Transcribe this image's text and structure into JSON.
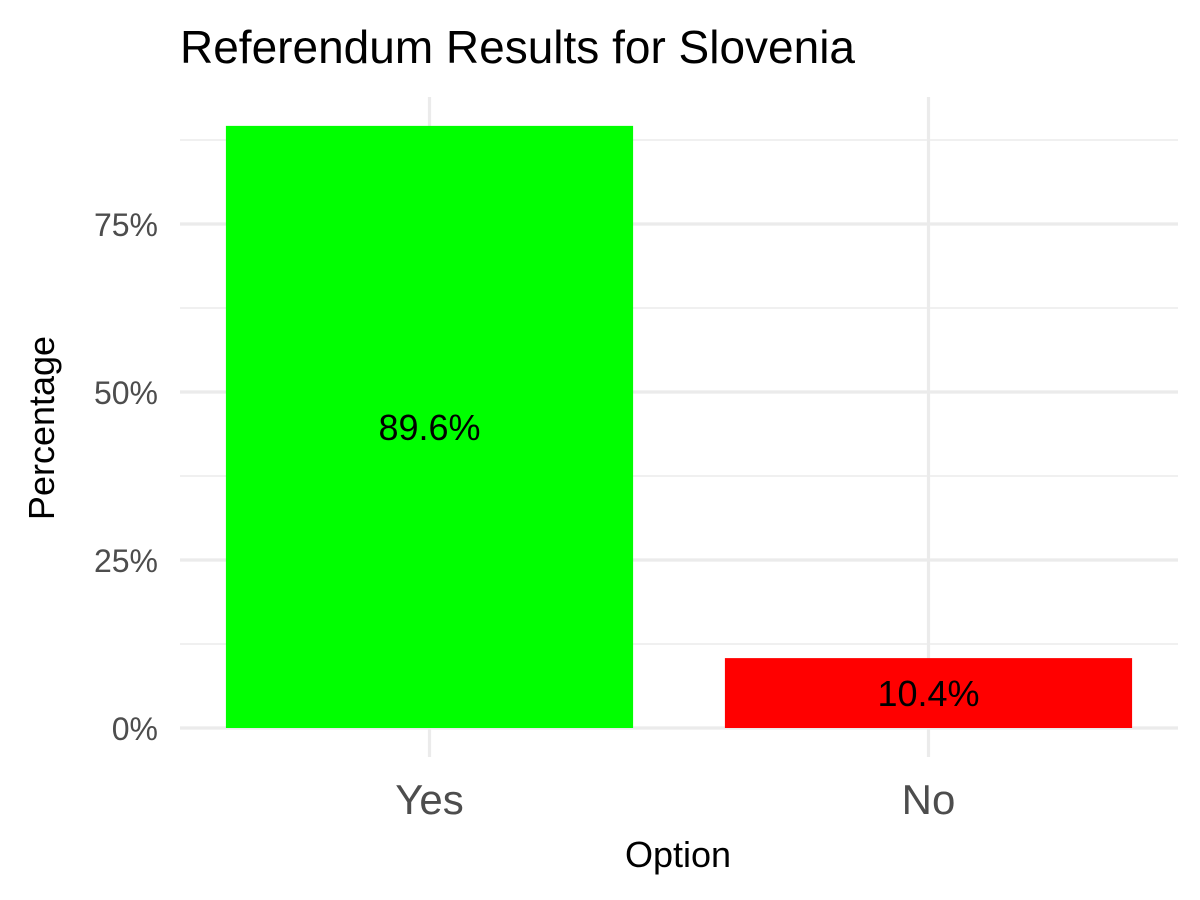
{
  "chart_data": {
    "type": "bar",
    "title": "Referendum Results for Slovenia",
    "xlabel": "Option",
    "ylabel": "Percentage",
    "categories": [
      "Yes",
      "No"
    ],
    "values": [
      89.6,
      10.4
    ],
    "value_labels": [
      "89.6%",
      "10.4%"
    ],
    "bar_colors": [
      "#00ff00",
      "#ff0000"
    ],
    "ylim": [
      0,
      94
    ],
    "yticks": [
      0,
      25,
      50,
      75
    ],
    "ytick_labels": [
      "0%",
      "25%",
      "50%",
      "75%"
    ],
    "grid": true,
    "legend": "none"
  }
}
